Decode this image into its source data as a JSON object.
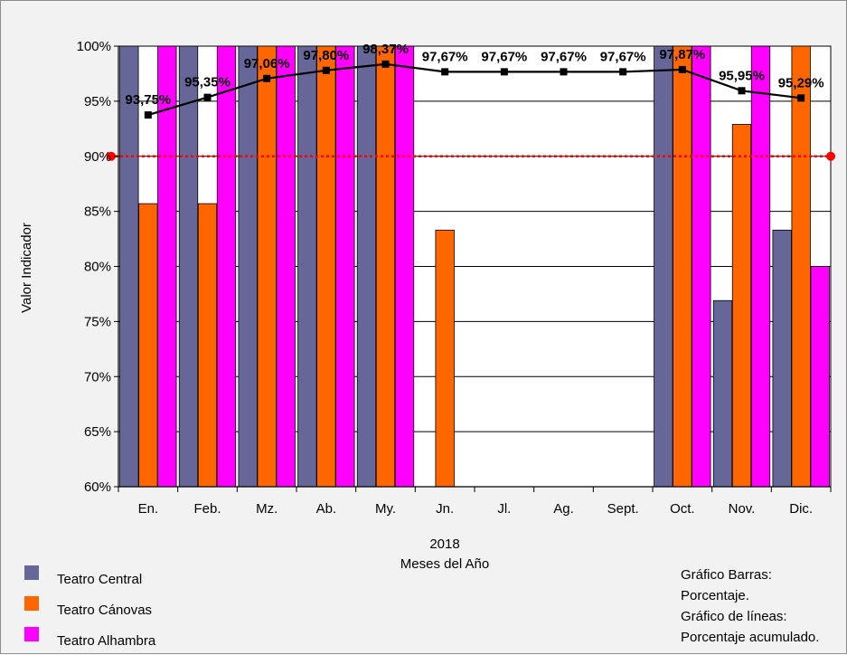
{
  "chart_data": {
    "type": "bar",
    "categories": [
      "En.",
      "Feb.",
      "Mz.",
      "Ab.",
      "My.",
      "Jn.",
      "Jl.",
      "Ag.",
      "Sept.",
      "Oct.",
      "Nov.",
      "Dic."
    ],
    "ylim": [
      0.6,
      1.0
    ],
    "yticks": [
      "60%",
      "65%",
      "70%",
      "75%",
      "80%",
      "85%",
      "90%",
      "95%",
      "100%"
    ],
    "ylabel": "Valor Indicador",
    "xlabel": [
      "2018",
      "Meses del Año"
    ],
    "grid": true,
    "series": [
      {
        "name": "Teatro Central",
        "color": "#666699",
        "values": [
          1.0,
          1.0,
          1.0,
          1.0,
          1.0,
          null,
          null,
          null,
          null,
          1.0,
          0.769,
          0.833
        ]
      },
      {
        "name": "Teatro Cánovas",
        "color": "#ff6600",
        "values": [
          0.857,
          0.857,
          1.0,
          1.0,
          1.0,
          0.833,
          null,
          null,
          null,
          1.0,
          0.929,
          1.0
        ]
      },
      {
        "name": "Teatro Alhambra",
        "color": "#ff00ff",
        "values": [
          1.0,
          1.0,
          1.0,
          1.0,
          1.0,
          null,
          null,
          null,
          null,
          1.0,
          1.0,
          0.8
        ]
      }
    ],
    "line": {
      "color": "#000000",
      "values": [
        0.9375,
        0.9535,
        0.9706,
        0.978,
        0.9837,
        0.9767,
        0.9767,
        0.9767,
        0.9767,
        0.9787,
        0.9595,
        0.9529
      ],
      "labels": [
        "93,75%",
        "95,35%",
        "97,06%",
        "97,80%",
        "98,37%",
        "97,67%",
        "97,67%",
        "97,67%",
        "97,67%",
        "97,87%",
        "95,95%",
        "95,29%"
      ]
    },
    "target": {
      "value": 0.9,
      "color": "#ff0000"
    },
    "legend": [
      {
        "label": "Teatro Central",
        "color": "#666699"
      },
      {
        "label": "Teatro Cánovas",
        "color": "#ff6600"
      },
      {
        "label": "Teatro Alhambra",
        "color": "#ff00ff"
      }
    ],
    "note": [
      "Gráfico Barras:",
      "Porcentaje.",
      "Gráfico de líneas:",
      "Porcentaje acumulado."
    ]
  }
}
